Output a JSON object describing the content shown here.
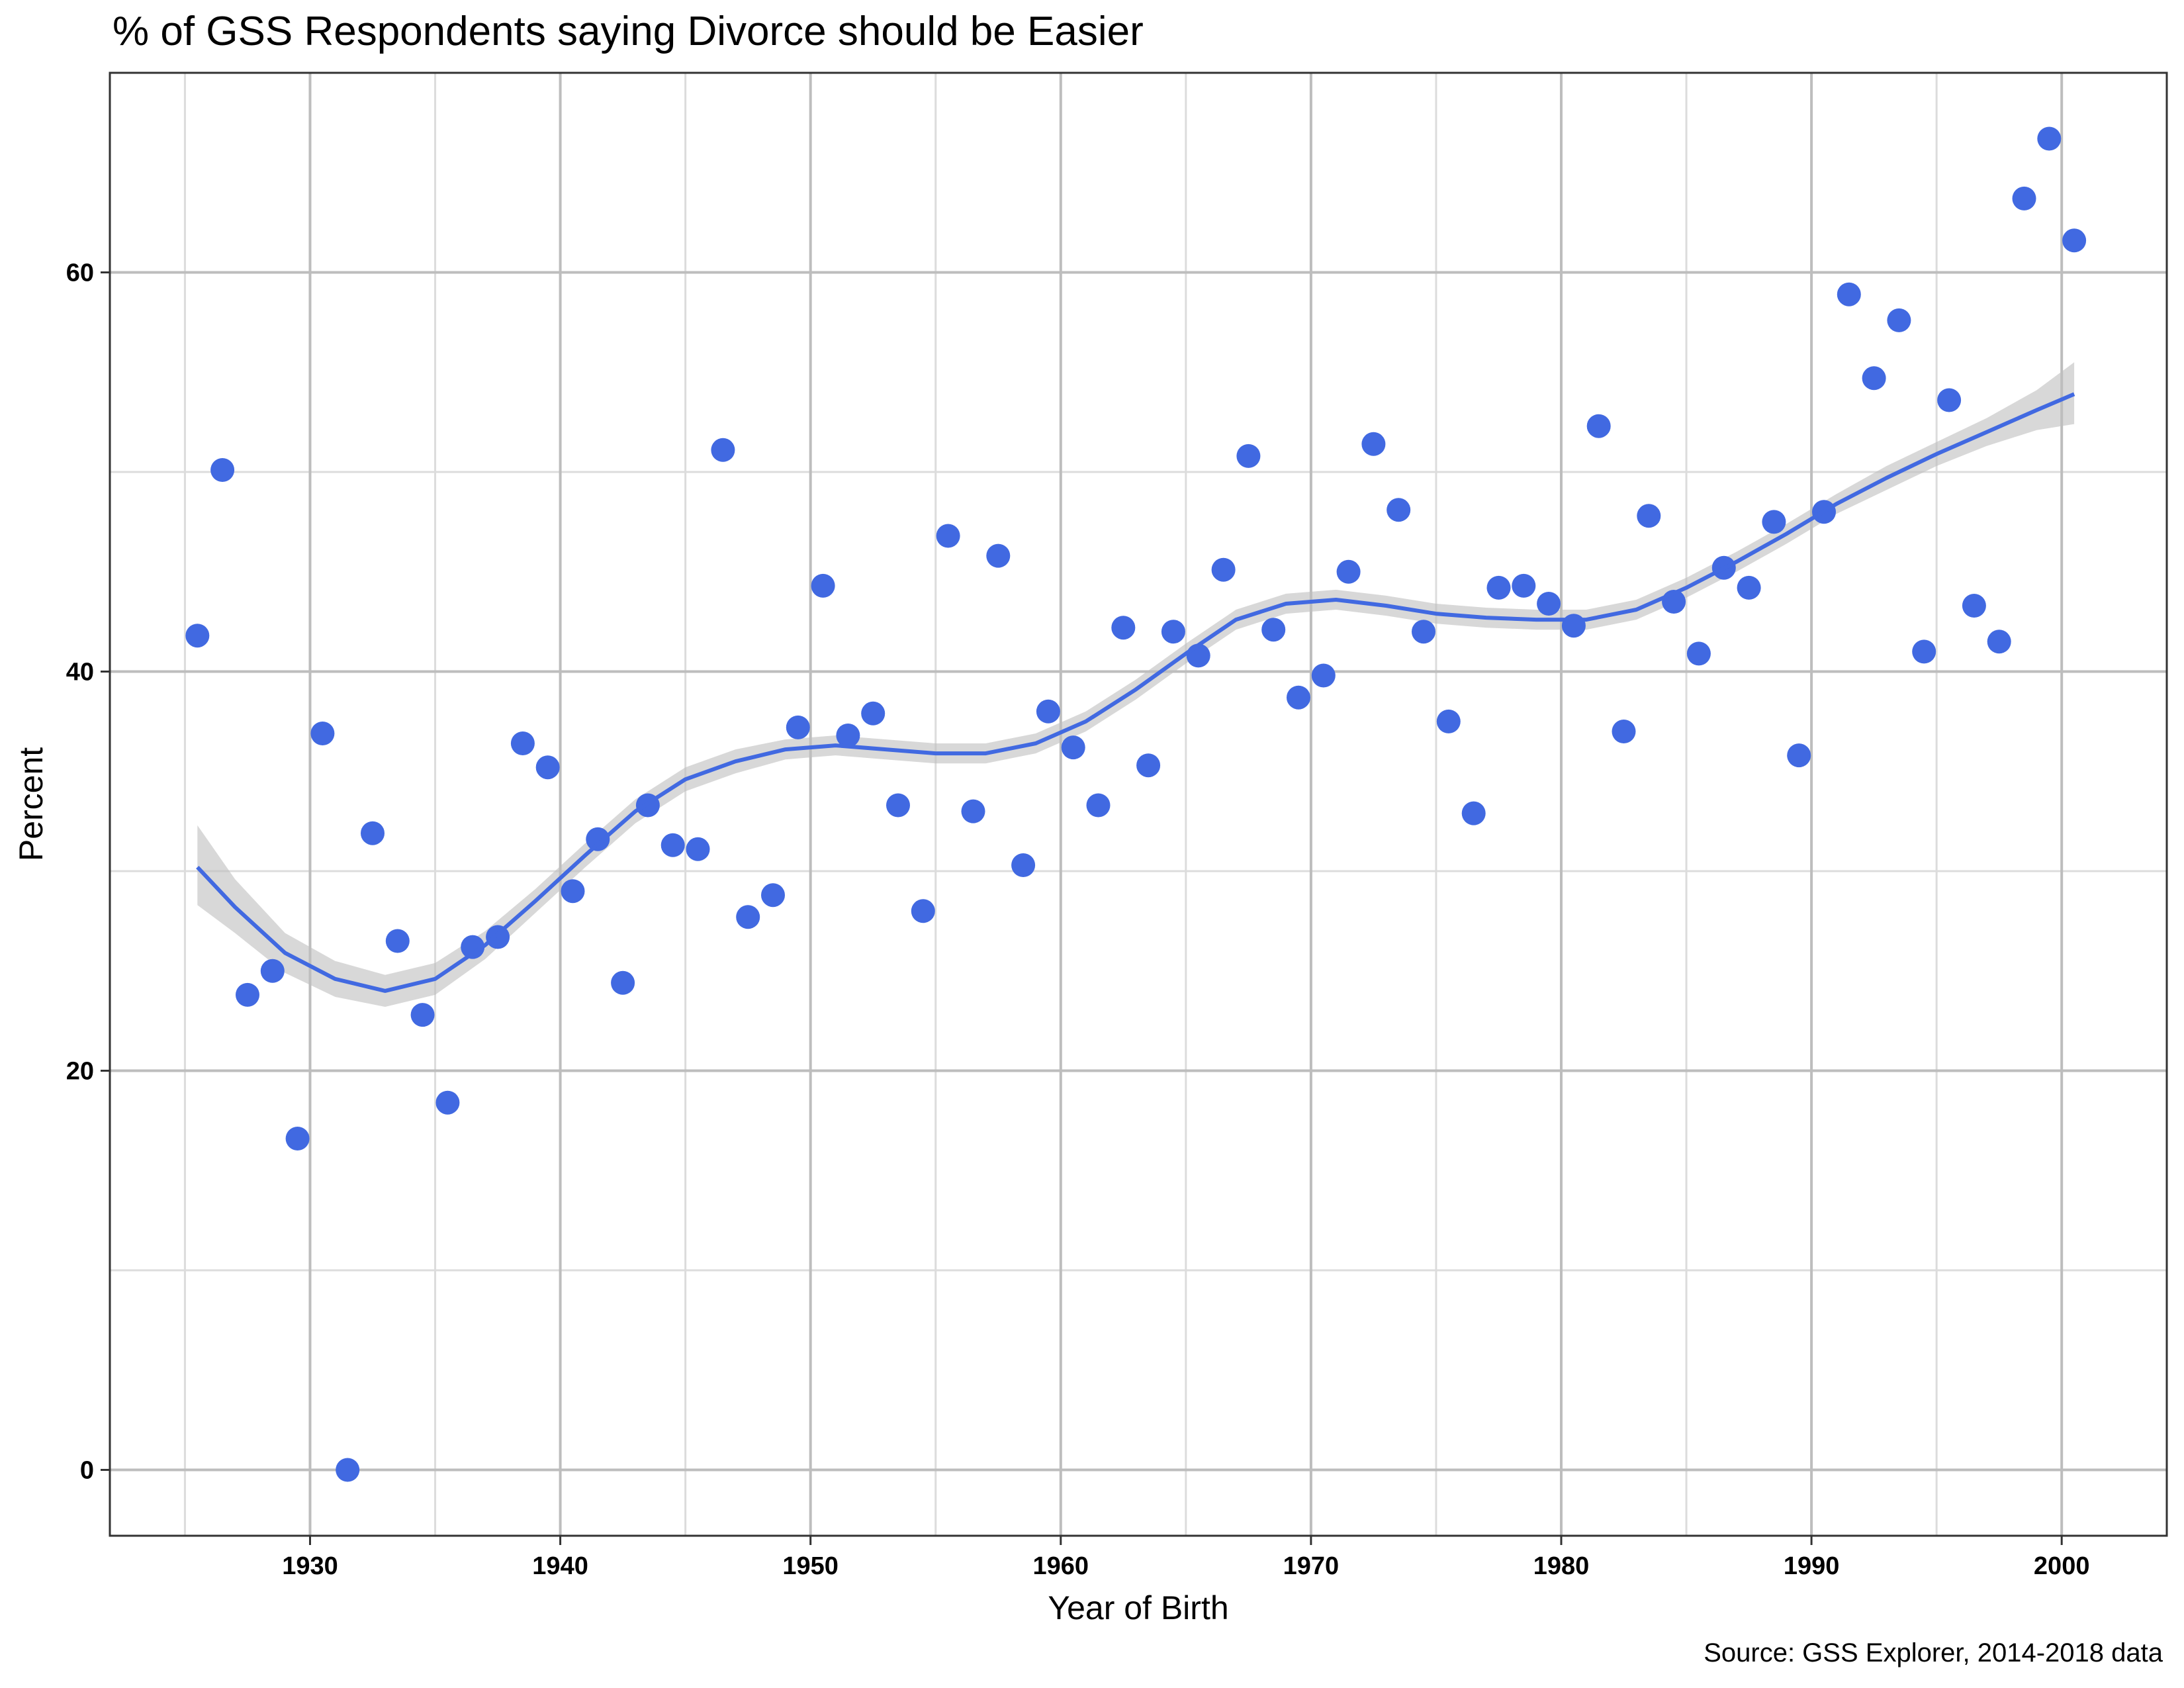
{
  "chart_data": {
    "type": "scatter",
    "title": "% of GSS Respondents saying Divorce should be Easier",
    "xlabel": "Year of Birth",
    "ylabel": "Percent",
    "caption": "Source: GSS Explorer, 2014-2018 data",
    "xlim": [
      1922,
      2004.2
    ],
    "ylim": [
      -3.3,
      70
    ],
    "x_ticks": [
      1930,
      1940,
      1950,
      1960,
      1970,
      1980,
      1990,
      2000
    ],
    "x_tick_labels": [
      "1930",
      "1940",
      "1950",
      "1960",
      "1970",
      "1980",
      "1990",
      "2000"
    ],
    "y_ticks": [
      0,
      20,
      40,
      60
    ],
    "y_tick_labels": [
      "0",
      "20",
      "40",
      "60"
    ],
    "grid": true,
    "legend": "none",
    "colors": {
      "points": "#4169E1",
      "smooth_line": "#4169E1",
      "ribbon": "#BEBEBE",
      "grid": "#BDBDBD",
      "panel_border": "#333333"
    },
    "series": [
      {
        "type": "scatter",
        "x": [
          1925.5,
          1926.5,
          1927.5,
          1928.5,
          1929.5,
          1930.5,
          1931.5,
          1932.5,
          1933.5,
          1934.5,
          1935.5,
          1936.5,
          1937.5,
          1938.5,
          1939.5,
          1940.5,
          1941.5,
          1942.5,
          1943.5,
          1944.5,
          1945.5,
          1946.5,
          1947.5,
          1948.5,
          1949.5,
          1950.5,
          1951.5,
          1952.5,
          1953.5,
          1954.5,
          1955.5,
          1956.5,
          1957.5,
          1958.5,
          1959.5,
          1960.5,
          1961.5,
          1962.5,
          1963.5,
          1964.5,
          1965.5,
          1966.5,
          1967.5,
          1968.5,
          1969.5,
          1970.5,
          1971.5,
          1972.5,
          1973.5,
          1974.5,
          1975.5,
          1976.5,
          1977.5,
          1978.5,
          1979.5,
          1980.5,
          1981.5,
          1982.5,
          1983.5,
          1984.5,
          1985.5,
          1986.5,
          1987.5,
          1988.5,
          1989.5,
          1990.5,
          1991.5,
          1992.5,
          1993.5,
          1994.5,
          1995.5,
          1996.5,
          1997.5,
          1998.5,
          1999.5,
          2000.5
        ],
        "y": [
          41.8,
          50.1,
          23.8,
          25.0,
          16.6,
          36.9,
          0.0,
          31.9,
          26.5,
          22.8,
          18.4,
          26.2,
          26.7,
          36.4,
          35.2,
          29.0,
          31.6,
          24.4,
          33.3,
          31.3,
          31.1,
          51.1,
          27.7,
          28.8,
          37.2,
          44.3,
          36.8,
          37.9,
          33.3,
          28.0,
          46.8,
          33.0,
          45.8,
          30.3,
          38.0,
          36.2,
          33.3,
          42.2,
          35.3,
          42.0,
          40.8,
          45.1,
          50.8,
          42.1,
          38.7,
          39.8,
          45.0,
          51.4,
          48.1,
          42.0,
          37.5,
          32.9,
          44.2,
          44.3,
          43.4,
          42.3,
          52.3,
          37.0,
          47.8,
          43.5,
          40.9,
          45.2,
          44.2,
          47.5,
          35.8,
          48.0,
          58.9,
          54.7,
          57.6,
          41.0,
          53.6,
          43.3,
          41.5,
          63.7,
          66.7,
          61.6
        ]
      },
      {
        "type": "smooth",
        "x": [
          1925.5,
          1927,
          1929,
          1931,
          1933,
          1935,
          1937,
          1939,
          1941,
          1943,
          1945,
          1947,
          1949,
          1951,
          1953,
          1955,
          1957,
          1959,
          1961,
          1963,
          1965,
          1967,
          1969,
          1971,
          1973,
          1975,
          1977,
          1979,
          1981,
          1983,
          1985,
          1987,
          1989,
          1991,
          1993,
          1995,
          1997,
          1999,
          2000.5
        ],
        "y": [
          30.2,
          28.2,
          25.9,
          24.6,
          24.0,
          24.6,
          26.3,
          28.5,
          30.8,
          33.0,
          34.6,
          35.5,
          36.1,
          36.3,
          36.1,
          35.9,
          35.9,
          36.4,
          37.5,
          39.1,
          40.9,
          42.6,
          43.4,
          43.6,
          43.3,
          42.9,
          42.7,
          42.6,
          42.6,
          43.1,
          44.2,
          45.5,
          46.9,
          48.4,
          49.7,
          50.9,
          52.0,
          53.1,
          53.9
        ],
        "ci_low": [
          28.3,
          26.9,
          24.9,
          23.7,
          23.2,
          23.8,
          25.6,
          27.9,
          30.2,
          32.4,
          34.0,
          34.9,
          35.6,
          35.8,
          35.6,
          35.4,
          35.4,
          35.9,
          37.0,
          38.6,
          40.4,
          42.1,
          42.9,
          43.1,
          42.8,
          42.4,
          42.2,
          42.1,
          42.1,
          42.6,
          43.7,
          45.0,
          46.4,
          47.9,
          49.1,
          50.3,
          51.3,
          52.1,
          52.4
        ],
        "ci_high": [
          32.3,
          29.6,
          26.9,
          25.5,
          24.8,
          25.4,
          27.0,
          29.1,
          31.4,
          33.6,
          35.2,
          36.1,
          36.6,
          36.8,
          36.6,
          36.4,
          36.4,
          36.9,
          38.0,
          39.6,
          41.4,
          43.1,
          43.9,
          44.1,
          43.8,
          43.4,
          43.2,
          43.1,
          43.1,
          43.6,
          44.7,
          46.0,
          47.4,
          48.9,
          50.3,
          51.5,
          52.7,
          54.1,
          55.5
        ]
      }
    ]
  }
}
